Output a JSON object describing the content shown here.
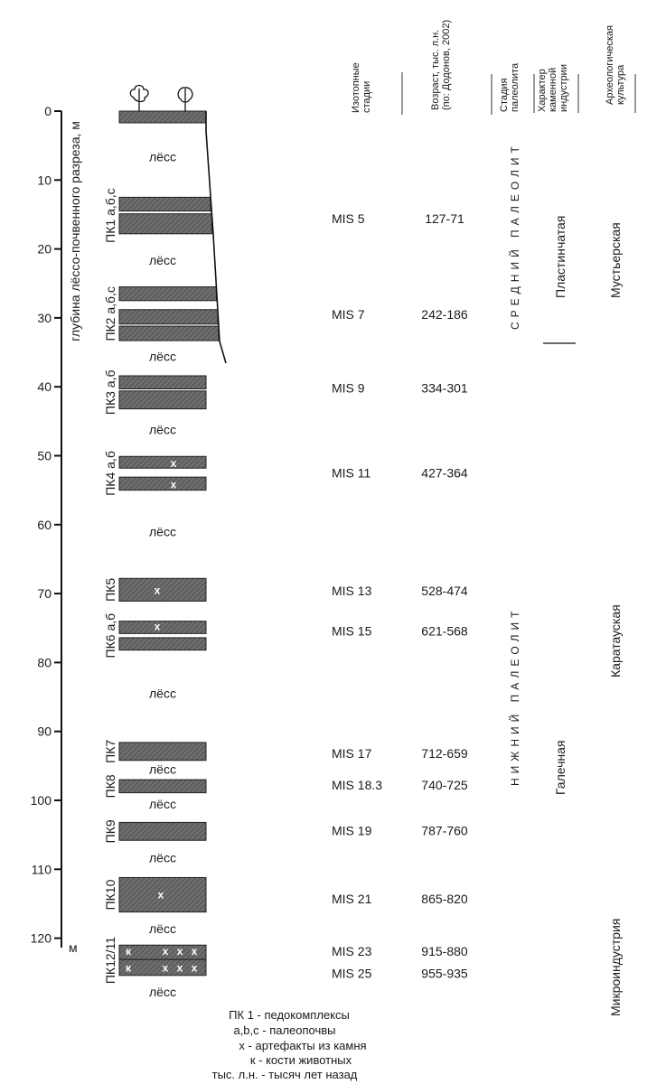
{
  "axis": {
    "title": "глубина лёссо-почвенного разреза, м",
    "unit": "м",
    "ticks": [
      0,
      10,
      20,
      30,
      40,
      50,
      60,
      70,
      80,
      90,
      100,
      110,
      120
    ],
    "range_m": [
      0,
      120
    ]
  },
  "headers": {
    "isotope": [
      "Изотопные",
      "стадии"
    ],
    "age": [
      "Возраст, тыс. л.н.",
      "(по: Додонов, 2002)"
    ],
    "stage": [
      "Стадия",
      "палеолита"
    ],
    "industry": [
      "Характер",
      "каменной",
      "индустрии"
    ],
    "culture": [
      "Археологическая",
      "культура"
    ]
  },
  "colors": {
    "paleosol_fill": "#6e6e6e",
    "hatch": "#4a4a4a",
    "artifact_mark": "#ffffff"
  },
  "loess_label": "лёсс",
  "loess_depths_m": [
    6.6,
    21.6,
    35.6,
    46.2,
    61,
    84.5,
    95.5,
    100.5,
    108.3,
    118.6,
    127.8
  ],
  "surface_soil_m": [
    0,
    1.7
  ],
  "pedocomplexes": [
    {
      "label": "ПК1 а,б,с",
      "layers": [
        [
          12.5,
          14.5
        ],
        [
          14.9,
          17.8
        ]
      ],
      "artifacts": [],
      "bones": []
    },
    {
      "label": "ПК2 а,б,с",
      "layers": [
        [
          25.5,
          27.5
        ],
        [
          28.8,
          30.9
        ],
        [
          31.2,
          33.3
        ]
      ],
      "artifacts": [],
      "bones": []
    },
    {
      "label": "ПК3 а,б",
      "layers": [
        [
          38.4,
          40.3
        ],
        [
          40.6,
          43.2
        ]
      ],
      "artifacts": [],
      "bones": []
    },
    {
      "label": "ПК4 а,б",
      "layers": [
        [
          50.1,
          51.8
        ],
        [
          53.1,
          55
        ]
      ],
      "artifacts": [
        51.1,
        54.2
      ],
      "bones": []
    },
    {
      "label": "ПК5",
      "layers": [
        [
          67.8,
          71.1
        ]
      ],
      "artifacts": [
        69.5
      ],
      "bones": []
    },
    {
      "label": "ПК6 а,б",
      "layers": [
        [
          74,
          75.8
        ],
        [
          76.4,
          78.2
        ]
      ],
      "artifacts": [
        74.8
      ],
      "bones": []
    },
    {
      "label": "ПК7",
      "layers": [
        [
          91.6,
          94.2
        ]
      ],
      "artifacts": [],
      "bones": []
    },
    {
      "label": "ПК8",
      "layers": [
        [
          97,
          98.9
        ]
      ],
      "artifacts": [],
      "bones": []
    },
    {
      "label": "ПК9",
      "layers": [
        [
          103.2,
          105.8
        ]
      ],
      "artifacts": [],
      "bones": []
    },
    {
      "label": "ПК10",
      "layers": [
        [
          111.2,
          116.2
        ]
      ],
      "artifacts": [
        113.7
      ],
      "bones": []
    },
    {
      "label": "ПК12/11",
      "layers": [
        [
          121,
          123.1
        ],
        [
          123.1,
          125.4
        ]
      ],
      "artifacts": [
        121.9,
        124.3
      ],
      "bones": [
        121.9,
        124.3
      ]
    }
  ],
  "artifact_symbol": "x",
  "bone_symbol": "к",
  "isotope_rows": [
    {
      "mis": "MIS 5",
      "age": "127-71",
      "depth_m": 15.6
    },
    {
      "mis": "MIS 7",
      "age": "242-186",
      "depth_m": 29.5
    },
    {
      "mis": "MIS 9",
      "age": "334-301",
      "depth_m": 40.2
    },
    {
      "mis": "MIS 11",
      "age": "427-364",
      "depth_m": 52.5
    },
    {
      "mis": "MIS 13",
      "age": "528-474",
      "depth_m": 69.6
    },
    {
      "mis": "MIS 15",
      "age": "621-568",
      "depth_m": 75.4
    },
    {
      "mis": "MIS 17",
      "age": "712-659",
      "depth_m": 93.2
    },
    {
      "mis": "MIS 18.3",
      "age": "740-725",
      "depth_m": 97.8
    },
    {
      "mis": "MIS 19",
      "age": "787-760",
      "depth_m": 104.4
    },
    {
      "mis": "MIS 21",
      "age": "865-820",
      "depth_m": 114.3
    },
    {
      "mis": "MIS 23",
      "age": "915-880",
      "depth_m": 121.9
    },
    {
      "mis": "MIS 25",
      "age": "955-935",
      "depth_m": 125.1
    }
  ],
  "stages": {
    "middle": "СРЕДНИЙ ПАЛЕОЛИТ",
    "lower": "НИЖНИЙ ПАЛЕОЛИТ"
  },
  "industry": {
    "blade": "Пластинчатая",
    "pebble": "Галечная"
  },
  "culture": {
    "mousterian": "Мустьерская",
    "karatau": "Каратауская",
    "micro": "Микроиндустрия"
  },
  "legend": [
    "ПК 1 - педокомплексы",
    "a,b,c - палеопочвы",
    "x  - артефакты из камня",
    "к  - кости животных",
    "тыс. л.н. - тысяч лет назад"
  ]
}
